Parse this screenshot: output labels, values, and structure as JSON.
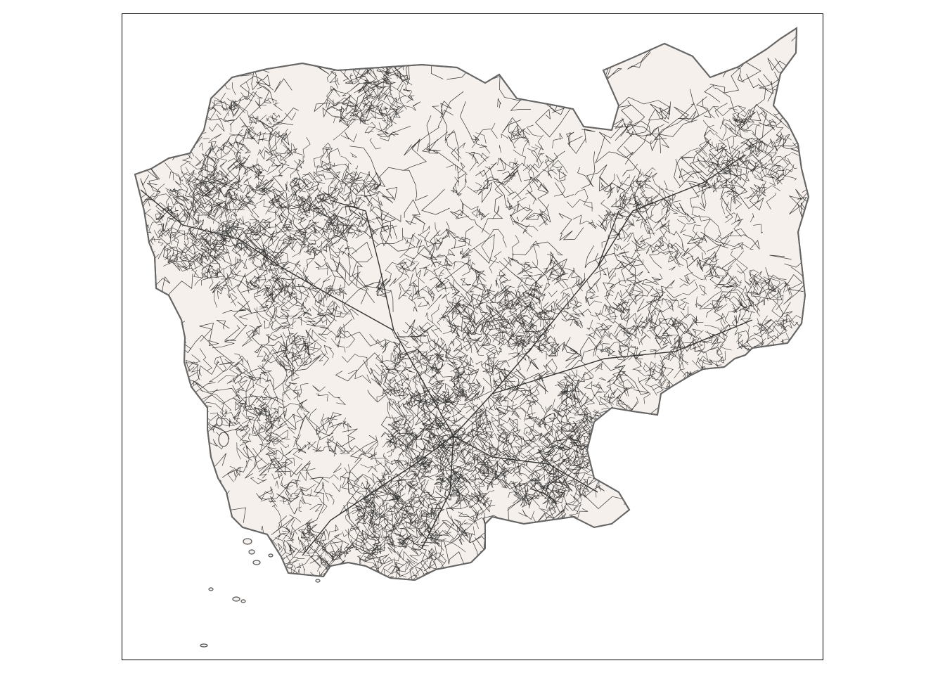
{
  "map": {
    "type": "road-network-map",
    "region_fill": "#f5f0ec",
    "region_outline": "#666666",
    "road_color": "#333333",
    "island_color": "#555555",
    "background": "#ffffff",
    "frame_color": "#000000",
    "legend": null,
    "title": null
  }
}
